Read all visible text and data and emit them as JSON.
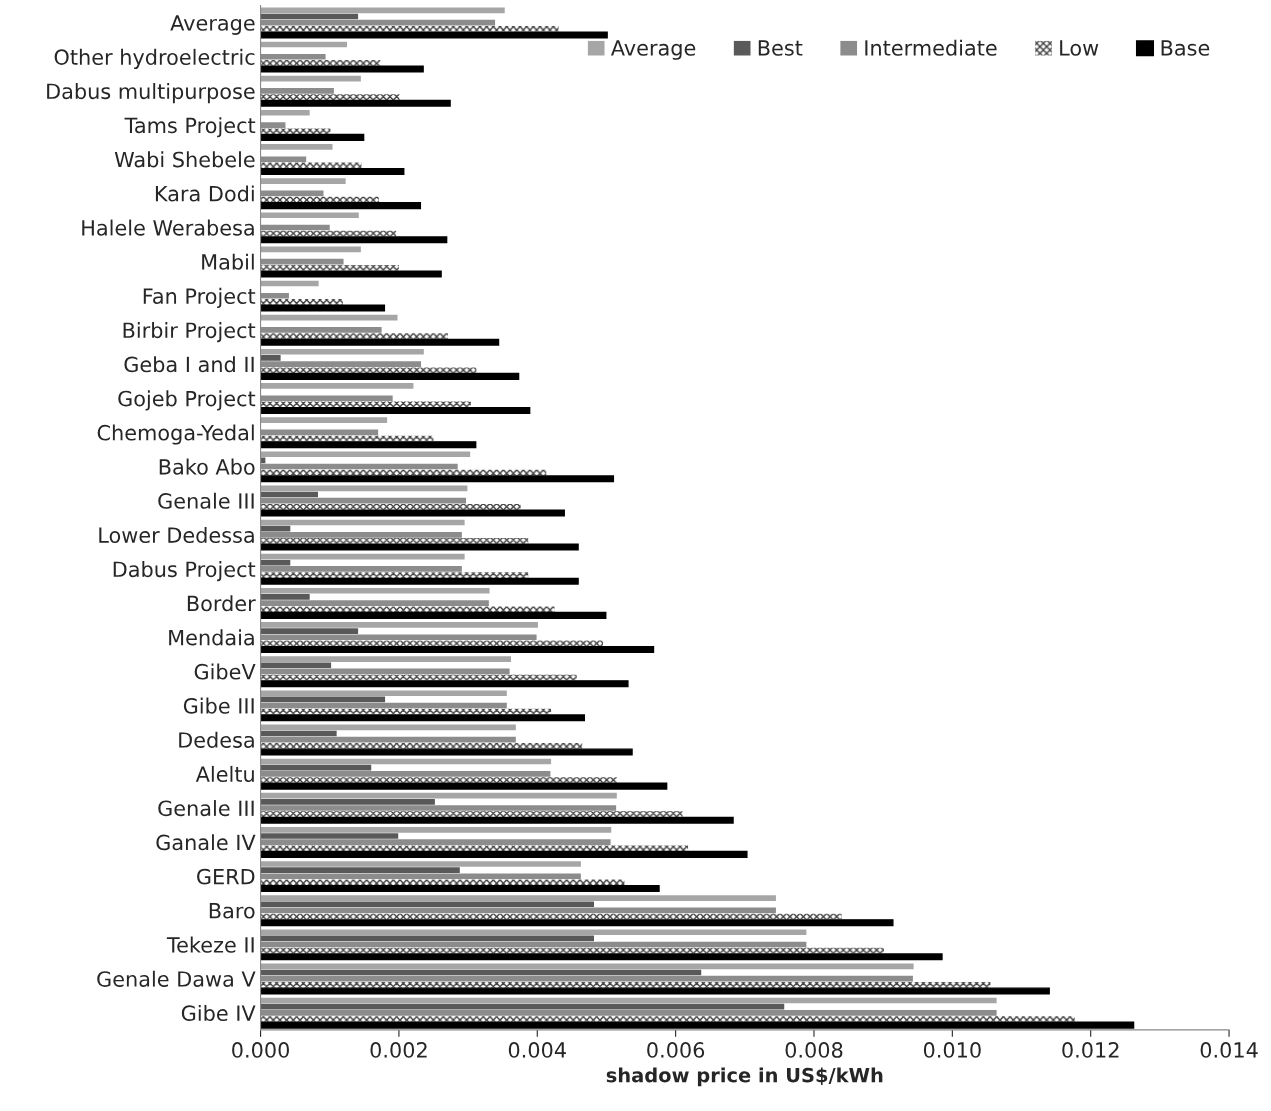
{
  "chart_data": {
    "type": "bar",
    "orientation": "horizontal",
    "xlabel": "shadow price in US$/kWh",
    "categories": [
      "Average",
      "Other hydroelectric",
      "Dabus multipurpose",
      "Tams Project",
      "Wabi Shebele",
      "Kara Dodi",
      "Halele Werabesa",
      "Mabil",
      "Fan Project",
      "Birbir Project",
      "Geba I and II",
      "Gojeb Project",
      "Chemoga-Yedal",
      "Bako Abo",
      "Genale III",
      "Lower Dedessa",
      "Dabus Project",
      "Border",
      "Mendaia",
      "GibeV",
      "Gibe III",
      "Dedesa",
      "Aleltu",
      "Genale III",
      "Ganale IV",
      "GERD",
      "Baro",
      "Tekeze II",
      "Genale Dawa V",
      "Gibe IV"
    ],
    "series": [
      {
        "name": "Average",
        "color": "#a6a6a6",
        "values": [
          0.00353,
          0.00125,
          0.00145,
          0.00071,
          0.00104,
          0.00123,
          0.00142,
          0.00145,
          0.00084,
          0.00198,
          0.00236,
          0.00221,
          0.00183,
          0.00303,
          0.00299,
          0.00295,
          0.00295,
          0.00331,
          0.00401,
          0.00362,
          0.00356,
          0.00369,
          0.0042,
          0.00515,
          0.00507,
          0.00463,
          0.00745,
          0.00789,
          0.00944,
          0.01064
        ]
      },
      {
        "name": "Best",
        "color": "#595959",
        "values": [
          0.00141,
          0,
          0,
          0,
          0,
          0,
          0,
          0,
          0,
          0,
          0.00029,
          0,
          0,
          7e-05,
          0.00083,
          0.00043,
          0.00043,
          0.00071,
          0.00141,
          0.00102,
          0.0018,
          0.0011,
          0.0016,
          0.00252,
          0.00199,
          0.00288,
          0.00482,
          0.00482,
          0.00637,
          0.00757
        ]
      },
      {
        "name": "Intermediate",
        "color": "#8c8c8c",
        "values": [
          0.00339,
          0.00094,
          0.00106,
          0.00036,
          0.00066,
          0.00091,
          0.001,
          0.0012,
          0.00041,
          0.00175,
          0.00232,
          0.00191,
          0.0017,
          0.00285,
          0.00297,
          0.00291,
          0.00291,
          0.0033,
          0.00399,
          0.0036,
          0.00356,
          0.00369,
          0.00419,
          0.00514,
          0.00506,
          0.00463,
          0.00745,
          0.00789,
          0.00943,
          0.01064
        ]
      },
      {
        "name": "Low",
        "color": "#404040",
        "values": [
          0.00431,
          0.00173,
          0.00201,
          0.00101,
          0.00146,
          0.00171,
          0.00196,
          0.002,
          0.00119,
          0.00271,
          0.00312,
          0.00304,
          0.0025,
          0.00413,
          0.00376,
          0.00387,
          0.00387,
          0.00425,
          0.00495,
          0.00457,
          0.0042,
          0.00465,
          0.00515,
          0.0061,
          0.00618,
          0.00526,
          0.0084,
          0.00901,
          0.01055,
          0.01177
        ]
      },
      {
        "name": "Base",
        "color": "#000000",
        "values": [
          0.00501,
          0.00235,
          0.00274,
          0.00149,
          0.00207,
          0.00231,
          0.00269,
          0.00261,
          0.00179,
          0.00344,
          0.00373,
          0.00389,
          0.00311,
          0.0051,
          0.00439,
          0.00459,
          0.00459,
          0.00499,
          0.00568,
          0.00531,
          0.00468,
          0.00537,
          0.00587,
          0.00683,
          0.00703,
          0.00576,
          0.00914,
          0.00985,
          0.0114,
          0.01262
        ]
      }
    ],
    "xlim": [
      0,
      0.014
    ],
    "xticks": [
      {
        "value": 0,
        "label": "0.000"
      },
      {
        "value": 0.002,
        "label": "0.002"
      },
      {
        "value": 0.004,
        "label": "0.004"
      },
      {
        "value": 0.006,
        "label": "0.006"
      },
      {
        "value": 0.008,
        "label": "0.008"
      },
      {
        "value": 0.01,
        "label": "0.010"
      },
      {
        "value": 0.012,
        "label": "0.012"
      },
      {
        "value": 0.014,
        "label": "0.014"
      }
    ],
    "legend": "top right"
  }
}
